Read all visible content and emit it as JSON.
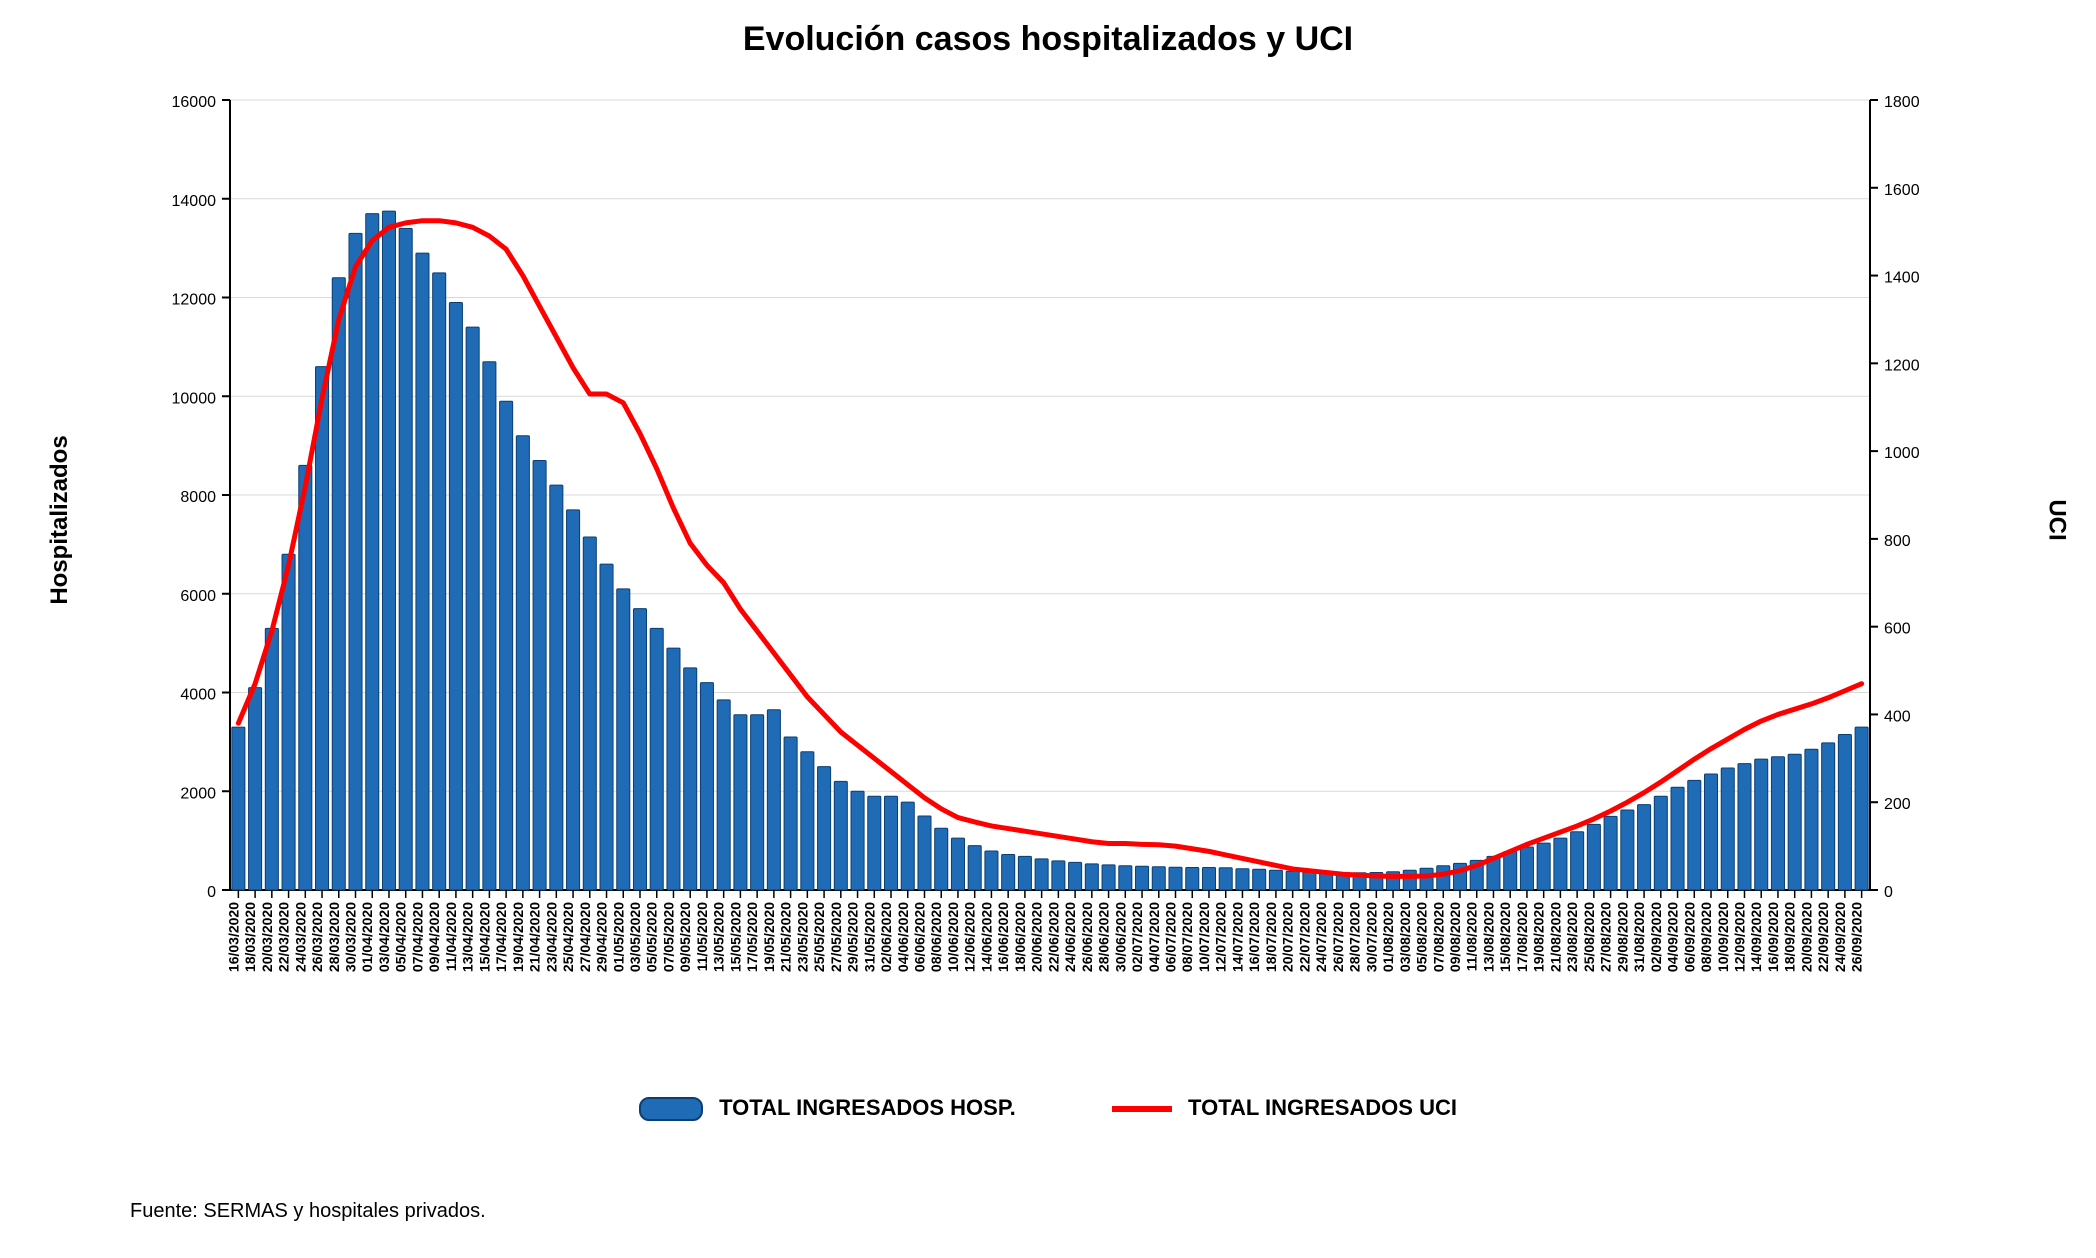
{
  "title": "Evolución casos hospitalizados y UCI",
  "y_left_label": "Hospitalizados",
  "y_right_label": "UCI",
  "legend_bar": "TOTAL INGRESADOS HOSP.",
  "legend_line": "TOTAL INGRESADOS UCI",
  "source": "Fuente: SERMAS y hospitales privados.",
  "chart": {
    "type": "bar+line",
    "background_color": "#ffffff",
    "grid_color": "#d9d9d9",
    "bar_color": "#1f6bb5",
    "bar_border_color": "#0b3f73",
    "line_color": "#ff0000",
    "line_width": 5,
    "y_left": {
      "min": 0,
      "max": 16000,
      "step": 2000
    },
    "y_right": {
      "min": 0,
      "max": 1800,
      "step": 200
    },
    "categories": [
      "16/03/2020",
      "18/03/2020",
      "20/03/2020",
      "22/03/2020",
      "24/03/2020",
      "26/03/2020",
      "28/03/2020",
      "30/03/2020",
      "01/04/2020",
      "03/04/2020",
      "05/04/2020",
      "07/04/2020",
      "09/04/2020",
      "11/04/2020",
      "13/04/2020",
      "15/04/2020",
      "17/04/2020",
      "19/04/2020",
      "21/04/2020",
      "23/04/2020",
      "25/04/2020",
      "27/04/2020",
      "29/04/2020",
      "01/05/2020",
      "03/05/2020",
      "05/05/2020",
      "07/05/2020",
      "09/05/2020",
      "11/05/2020",
      "13/05/2020",
      "15/05/2020",
      "17/05/2020",
      "19/05/2020",
      "21/05/2020",
      "23/05/2020",
      "25/05/2020",
      "27/05/2020",
      "29/05/2020",
      "31/05/2020",
      "02/06/2020",
      "04/06/2020",
      "06/06/2020",
      "08/06/2020",
      "10/06/2020",
      "12/06/2020",
      "14/06/2020",
      "16/06/2020",
      "18/06/2020",
      "20/06/2020",
      "22/06/2020",
      "24/06/2020",
      "26/06/2020",
      "28/06/2020",
      "30/06/2020",
      "02/07/2020",
      "04/07/2020",
      "06/07/2020",
      "08/07/2020",
      "10/07/2020",
      "12/07/2020",
      "14/07/2020",
      "16/07/2020",
      "18/07/2020",
      "20/07/2020",
      "22/07/2020",
      "24/07/2020",
      "26/07/2020",
      "28/07/2020",
      "30/07/2020",
      "01/08/2020",
      "03/08/2020",
      "05/08/2020",
      "07/08/2020",
      "09/08/2020",
      "11/08/2020",
      "13/08/2020",
      "15/08/2020",
      "17/08/2020",
      "19/08/2020",
      "21/08/2020",
      "23/08/2020",
      "25/08/2020",
      "27/08/2020",
      "29/08/2020",
      "31/08/2020",
      "02/09/2020",
      "04/09/2020",
      "06/09/2020",
      "08/09/2020",
      "10/09/2020",
      "12/09/2020",
      "14/09/2020",
      "16/09/2020",
      "18/09/2020",
      "20/09/2020",
      "22/09/2020",
      "24/09/2020",
      "26/09/2020"
    ],
    "hosp": [
      3300,
      4100,
      5300,
      6800,
      8600,
      10600,
      12400,
      13300,
      13700,
      13750,
      13400,
      12900,
      12500,
      11900,
      11400,
      10700,
      9900,
      9200,
      8700,
      8200,
      7700,
      7150,
      6600,
      6100,
      5700,
      5300,
      4900,
      4500,
      4200,
      3850,
      3550,
      3550,
      3650,
      3100,
      2800,
      2500,
      2200,
      2000,
      1900,
      1900,
      1780,
      1500,
      1250,
      1050,
      900,
      790,
      720,
      680,
      630,
      590,
      560,
      530,
      510,
      490,
      480,
      470,
      460,
      455,
      455,
      450,
      430,
      420,
      400,
      380,
      360,
      350,
      350,
      350,
      355,
      370,
      400,
      440,
      490,
      540,
      600,
      680,
      780,
      870,
      950,
      1050,
      1180,
      1330,
      1490,
      1620,
      1730,
      1900,
      2080,
      2220,
      2350,
      2470,
      2560,
      2650,
      2700,
      2750,
      2850,
      2980,
      3150,
      3300
    ],
    "uci": [
      380,
      470,
      590,
      740,
      920,
      1120,
      1300,
      1420,
      1480,
      1510,
      1520,
      1525,
      1525,
      1520,
      1510,
      1490,
      1460,
      1400,
      1330,
      1260,
      1190,
      1130,
      1130,
      1110,
      1040,
      960,
      870,
      790,
      740,
      700,
      640,
      590,
      540,
      490,
      440,
      400,
      360,
      330,
      300,
      270,
      240,
      210,
      185,
      165,
      155,
      146,
      140,
      134,
      128,
      122,
      116,
      110,
      106,
      106,
      104,
      103,
      100,
      94,
      88,
      80,
      72,
      64,
      56,
      48,
      44,
      40,
      36,
      34,
      32,
      31,
      31,
      32,
      36,
      44,
      56,
      72,
      88,
      104,
      118,
      132,
      146,
      162,
      180,
      200,
      222,
      246,
      272,
      298,
      322,
      344,
      366,
      385,
      400,
      412,
      424,
      438,
      454,
      470
    ]
  },
  "fonts": {
    "title_pt": 34,
    "axis_label_pt": 24,
    "tick_pt": 20,
    "xcat_pt": 14,
    "legend_pt": 22,
    "source_pt": 20
  }
}
